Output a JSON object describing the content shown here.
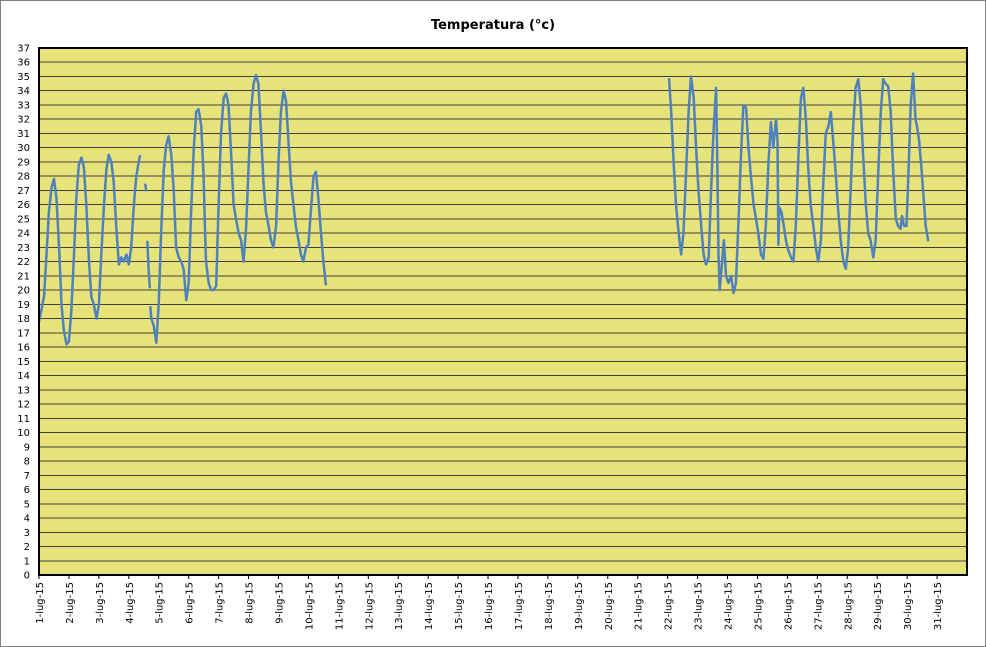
{
  "chart_data": {
    "type": "line",
    "title": "Temperatura (°c)",
    "xlabel": "",
    "ylabel": "",
    "ylim": [
      0,
      37
    ],
    "y_ticks": [
      0,
      1,
      2,
      3,
      4,
      5,
      6,
      7,
      8,
      9,
      10,
      11,
      12,
      13,
      14,
      15,
      16,
      17,
      18,
      19,
      20,
      21,
      22,
      23,
      24,
      25,
      26,
      27,
      28,
      29,
      30,
      31,
      32,
      33,
      34,
      35,
      36,
      37
    ],
    "x_tick_labels": [
      "1-lug-15",
      "2-lug-15",
      "3-lug-15",
      "4-lug-15",
      "5-lug-15",
      "6-lug-15",
      "7-lug-15",
      "8-lug-15",
      "9-lug-15",
      "10-lug-15",
      "11-lug-15",
      "12-lug-15",
      "13-lug-15",
      "14-lug-15",
      "15-lug-15",
      "16-lug-15",
      "17-lug-15",
      "18-lug-15",
      "19-lug-15",
      "20-lug-15",
      "21-lug-15",
      "22-lug-15",
      "23-lug-15",
      "24-lug-15",
      "25-lug-15",
      "26-lug-15",
      "27-lug-15",
      "28-lug-15",
      "29-lug-15",
      "30-lug-15",
      "31-lug-15"
    ],
    "xlim_days": [
      1,
      32
    ],
    "grid": true,
    "plot_background": "#e6e37a",
    "line_color": "#4f81bd",
    "grid_color": "#404040",
    "series": [
      {
        "segments": [
          [
            [
              1.0,
              17.8
            ],
            [
              1.08,
              18.6
            ],
            [
              1.17,
              19.6
            ],
            [
              1.25,
              22.5
            ],
            [
              1.33,
              25.5
            ],
            [
              1.42,
              27.2
            ],
            [
              1.5,
              27.8
            ],
            [
              1.58,
              26.5
            ],
            [
              1.67,
              23.0
            ],
            [
              1.75,
              19.0
            ],
            [
              1.83,
              17.2
            ],
            [
              1.92,
              16.2
            ],
            [
              2.0,
              16.4
            ],
            [
              2.08,
              18.5
            ],
            [
              2.17,
              22.5
            ],
            [
              2.25,
              26.5
            ],
            [
              2.33,
              28.8
            ],
            [
              2.42,
              29.3
            ],
            [
              2.5,
              28.6
            ],
            [
              2.58,
              26.0
            ],
            [
              2.67,
              22.0
            ],
            [
              2.75,
              19.5
            ],
            [
              2.83,
              19.0
            ],
            [
              2.92,
              18.0
            ],
            [
              3.0,
              19.0
            ],
            [
              3.08,
              22.5
            ],
            [
              3.17,
              26.0
            ],
            [
              3.25,
              28.5
            ],
            [
              3.33,
              29.5
            ],
            [
              3.42,
              29.0
            ],
            [
              3.5,
              27.5
            ],
            [
              3.58,
              24.5
            ],
            [
              3.67,
              21.8
            ],
            [
              3.75,
              22.3
            ],
            [
              3.83,
              22.0
            ],
            [
              3.92,
              22.5
            ],
            [
              4.0,
              21.8
            ],
            [
              4.08,
              23.0
            ],
            [
              4.17,
              26.0
            ],
            [
              4.25,
              28.0
            ],
            [
              4.33,
              29.0
            ],
            [
              4.37,
              29.4
            ]
          ],
          [
            [
              4.55,
              27.4
            ],
            [
              4.58,
              27.0
            ]
          ],
          [
            [
              4.62,
              23.4
            ],
            [
              4.66,
              21.5
            ],
            [
              4.7,
              20.2
            ]
          ],
          [
            [
              4.72,
              18.8
            ],
            [
              4.75,
              18.0
            ],
            [
              4.83,
              17.5
            ],
            [
              4.92,
              16.3
            ],
            [
              5.0,
              19.0
            ],
            [
              5.08,
              24.0
            ],
            [
              5.17,
              28.5
            ],
            [
              5.25,
              30.2
            ],
            [
              5.33,
              30.8
            ],
            [
              5.42,
              29.5
            ],
            [
              5.5,
              27.0
            ],
            [
              5.58,
              23.0
            ],
            [
              5.67,
              22.3
            ],
            [
              5.75,
              22.0
            ],
            [
              5.83,
              21.5
            ],
            [
              5.92,
              19.3
            ],
            [
              6.0,
              20.5
            ],
            [
              6.08,
              25.5
            ],
            [
              6.17,
              30.0
            ],
            [
              6.25,
              32.5
            ],
            [
              6.33,
              32.7
            ],
            [
              6.42,
              31.5
            ],
            [
              6.5,
              28.0
            ],
            [
              6.55,
              24.0
            ],
            [
              6.58,
              22.0
            ],
            [
              6.67,
              20.5
            ],
            [
              6.75,
              20.0
            ],
            [
              6.83,
              20.0
            ],
            [
              6.92,
              20.3
            ],
            [
              7.0,
              26.0
            ],
            [
              7.08,
              31.0
            ],
            [
              7.17,
              33.5
            ],
            [
              7.25,
              33.8
            ],
            [
              7.33,
              33.0
            ],
            [
              7.42,
              29.5
            ],
            [
              7.5,
              26.0
            ],
            [
              7.58,
              25.0
            ],
            [
              7.67,
              24.0
            ],
            [
              7.75,
              23.5
            ],
            [
              7.83,
              22.0
            ],
            [
              7.92,
              24.5
            ],
            [
              8.0,
              28.5
            ],
            [
              8.08,
              32.5
            ],
            [
              8.17,
              34.5
            ],
            [
              8.25,
              35.1
            ],
            [
              8.33,
              34.5
            ],
            [
              8.42,
              31.0
            ],
            [
              8.5,
              27.5
            ],
            [
              8.58,
              25.5
            ],
            [
              8.67,
              24.5
            ],
            [
              8.75,
              23.5
            ],
            [
              8.83,
              23.0
            ],
            [
              8.92,
              24.5
            ],
            [
              9.0,
              29.0
            ],
            [
              9.08,
              32.5
            ],
            [
              9.17,
              34.0
            ],
            [
              9.25,
              33.3
            ],
            [
              9.33,
              30.5
            ],
            [
              9.42,
              27.5
            ],
            [
              9.5,
              26.0
            ],
            [
              9.58,
              24.5
            ],
            [
              9.67,
              23.5
            ],
            [
              9.75,
              22.5
            ],
            [
              9.83,
              22.0
            ],
            [
              9.92,
              23.0
            ],
            [
              10.0,
              23.2
            ],
            [
              10.08,
              25.5
            ],
            [
              10.17,
              28.0
            ],
            [
              10.25,
              28.3
            ],
            [
              10.33,
              26.5
            ],
            [
              10.42,
              24.0
            ],
            [
              10.5,
              22.0
            ],
            [
              10.58,
              20.4
            ]
          ],
          [
            [
              22.05,
              34.8
            ],
            [
              22.12,
              32.5
            ],
            [
              22.2,
              29.0
            ],
            [
              22.28,
              26.0
            ],
            [
              22.37,
              24.0
            ],
            [
              22.45,
              22.5
            ],
            [
              22.53,
              24.0
            ],
            [
              22.62,
              28.5
            ],
            [
              22.7,
              32.5
            ],
            [
              22.78,
              35.0
            ],
            [
              22.87,
              33.5
            ],
            [
              22.95,
              30.0
            ],
            [
              23.03,
              27.0
            ],
            [
              23.12,
              24.5
            ],
            [
              23.2,
              22.5
            ],
            [
              23.28,
              21.8
            ],
            [
              23.37,
              22.3
            ],
            [
              23.45,
              27.0
            ],
            [
              23.53,
              31.0
            ],
            [
              23.62,
              34.2
            ],
            [
              23.66,
              29.0
            ],
            [
              23.7,
              22.5
            ],
            [
              23.74,
              20.0
            ],
            [
              23.8,
              21.5
            ],
            [
              23.88,
              23.5
            ],
            [
              23.95,
              21.0
            ],
            [
              24.03,
              20.5
            ],
            [
              24.12,
              21.0
            ],
            [
              24.2,
              19.8
            ],
            [
              24.28,
              20.5
            ],
            [
              24.37,
              25.0
            ],
            [
              24.45,
              29.5
            ],
            [
              24.53,
              33.0
            ],
            [
              24.62,
              32.8
            ],
            [
              24.7,
              30.0
            ],
            [
              24.78,
              28.0
            ],
            [
              24.87,
              26.0
            ],
            [
              24.95,
              25.0
            ],
            [
              25.03,
              24.0
            ],
            [
              25.12,
              22.5
            ],
            [
              25.2,
              22.2
            ],
            [
              25.28,
              24.5
            ],
            [
              25.37,
              29.0
            ],
            [
              25.45,
              31.8
            ],
            [
              25.53,
              30.0
            ],
            [
              25.62,
              32.0
            ],
            [
              25.67,
              30.5
            ],
            [
              25.7,
              23.2
            ],
            [
              25.73,
              25.8
            ],
            [
              25.8,
              25.5
            ],
            [
              25.88,
              24.5
            ],
            [
              25.95,
              23.5
            ],
            [
              26.03,
              22.8
            ],
            [
              26.12,
              22.3
            ],
            [
              26.2,
              22.0
            ],
            [
              26.28,
              24.5
            ],
            [
              26.37,
              29.5
            ],
            [
              26.45,
              33.5
            ],
            [
              26.53,
              34.2
            ],
            [
              26.62,
              32.0
            ],
            [
              26.7,
              28.5
            ],
            [
              26.78,
              26.0
            ],
            [
              26.87,
              24.5
            ],
            [
              26.95,
              23.0
            ],
            [
              27.03,
              22.0
            ],
            [
              27.12,
              23.5
            ],
            [
              27.2,
              27.5
            ],
            [
              27.28,
              31.0
            ],
            [
              27.37,
              31.5
            ],
            [
              27.45,
              32.5
            ],
            [
              27.53,
              30.5
            ],
            [
              27.62,
              28.0
            ],
            [
              27.7,
              25.5
            ],
            [
              27.78,
              23.5
            ],
            [
              27.87,
              22.0
            ],
            [
              27.95,
              21.5
            ],
            [
              28.03,
              23.0
            ],
            [
              28.12,
              27.5
            ],
            [
              28.2,
              31.5
            ],
            [
              28.28,
              34.2
            ],
            [
              28.37,
              34.8
            ],
            [
              28.45,
              33.0
            ],
            [
              28.53,
              29.5
            ],
            [
              28.62,
              26.0
            ],
            [
              28.7,
              24.0
            ],
            [
              28.78,
              23.5
            ],
            [
              28.87,
              22.3
            ],
            [
              28.95,
              23.5
            ],
            [
              29.03,
              28.0
            ],
            [
              29.12,
              32.5
            ],
            [
              29.2,
              34.8
            ],
            [
              29.28,
              34.5
            ],
            [
              29.37,
              34.3
            ],
            [
              29.45,
              32.5
            ],
            [
              29.53,
              28.5
            ],
            [
              29.62,
              25.0
            ],
            [
              29.7,
              24.5
            ],
            [
              29.78,
              24.3
            ],
            [
              29.83,
              25.2
            ],
            [
              29.9,
              24.5
            ],
            [
              29.98,
              24.5
            ],
            [
              30.05,
              28.5
            ],
            [
              30.12,
              33.0
            ],
            [
              30.2,
              35.2
            ],
            [
              30.28,
              32.0
            ],
            [
              30.33,
              31.5
            ],
            [
              30.4,
              30.5
            ],
            [
              30.48,
              28.5
            ],
            [
              30.55,
              26.5
            ],
            [
              30.62,
              24.5
            ],
            [
              30.7,
              23.5
            ]
          ]
        ]
      }
    ]
  }
}
